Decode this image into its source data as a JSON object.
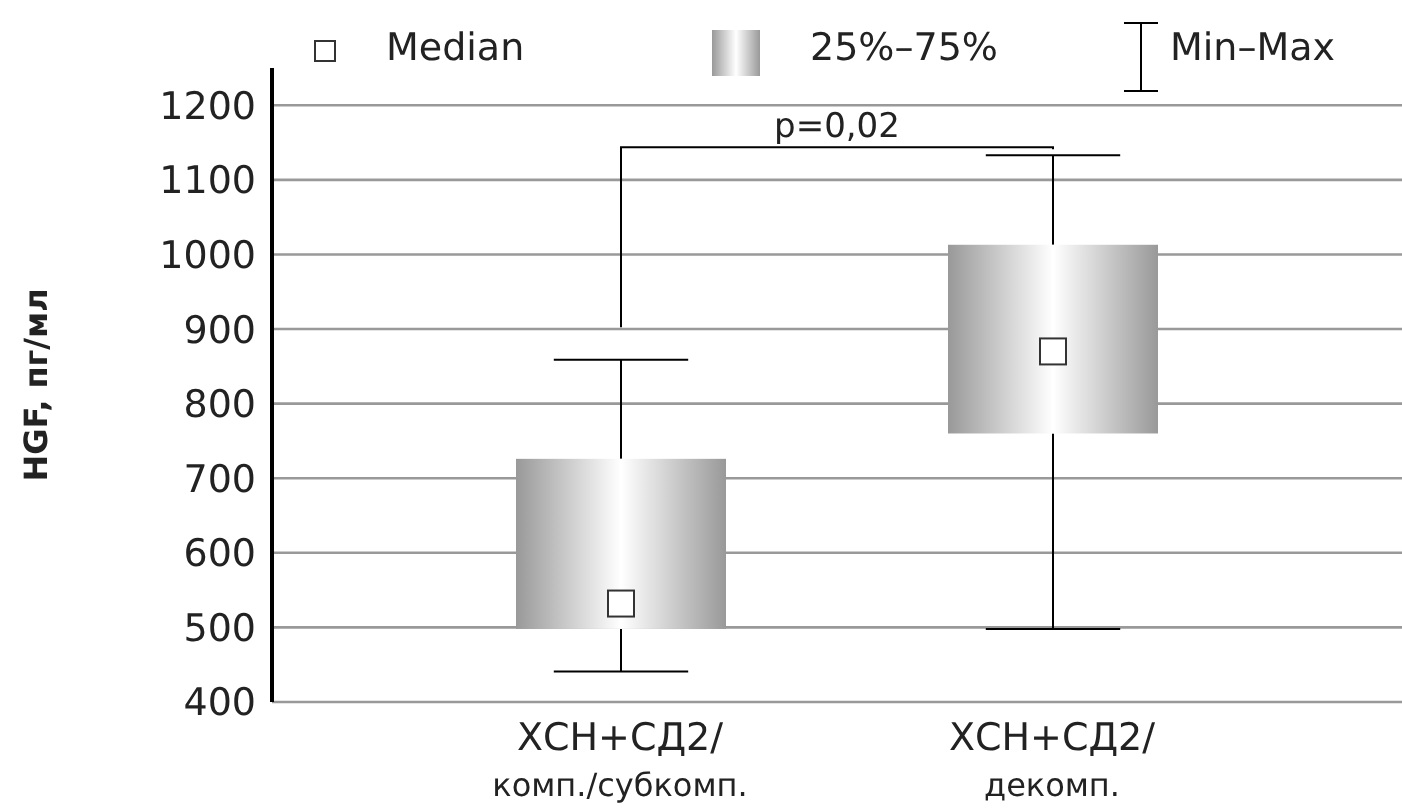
{
  "chart_data": {
    "type": "box",
    "categories": [
      "ХСН+СД2/\nкомп./субкомп.",
      "ХСН+СД2/\nдекомп."
    ],
    "boxes": [
      {
        "low": 441,
        "q1": 498,
        "median": 532,
        "q3": 726,
        "high": 859
      },
      {
        "low": 498,
        "q1": 760,
        "median": 870,
        "q3": 1013,
        "high": 1133
      }
    ],
    "color": "#999999",
    "ylabel": "HGF, пг/мл",
    "ylim": [
      400,
      1250
    ],
    "yticks": [
      400,
      500,
      600,
      700,
      800,
      900,
      1000,
      1100,
      1200
    ],
    "grid": "y",
    "annotations": [
      "Median",
      "25%–75%",
      "Min–Max",
      "p=0,02"
    ]
  }
}
